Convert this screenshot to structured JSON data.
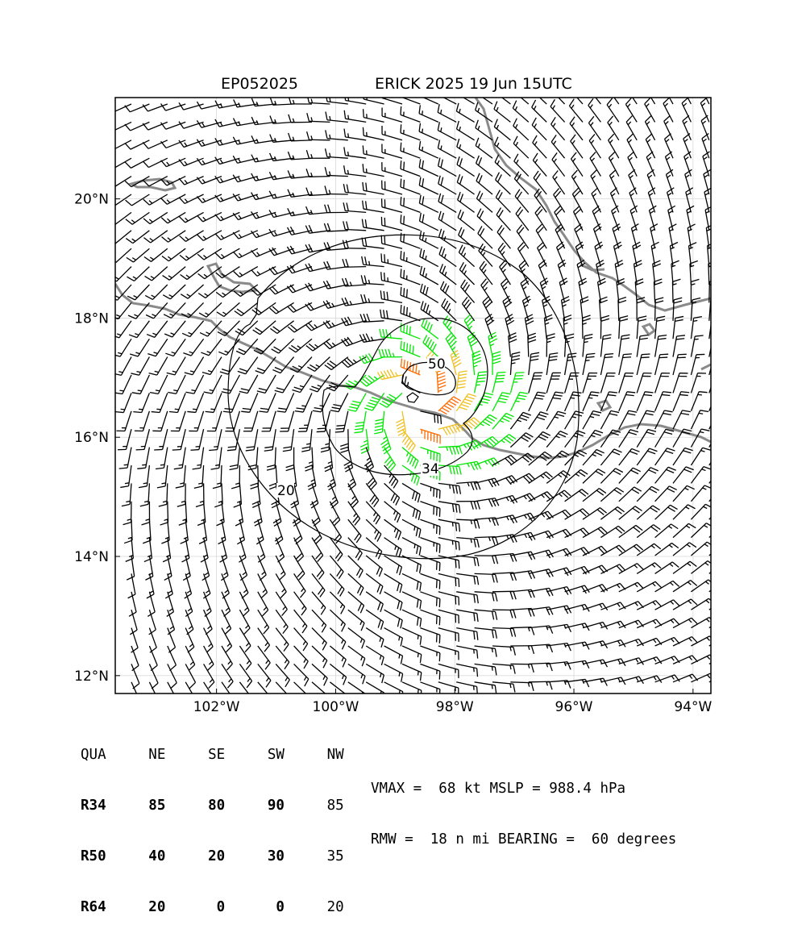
{
  "title": {
    "storm_id": "EP052025",
    "storm_info": "ERICK 2025 19 Jun 15UTC"
  },
  "map": {
    "lon_range": [
      -103.7,
      -93.7
    ],
    "lat_range": [
      11.7,
      21.7
    ],
    "lon_ticks": [
      {
        "value": -102,
        "label": "102°W"
      },
      {
        "value": -100,
        "label": "100°W"
      },
      {
        "value": -98,
        "label": "98°W"
      },
      {
        "value": -96,
        "label": "96°W"
      },
      {
        "value": -94,
        "label": "94°W"
      }
    ],
    "lat_ticks": [
      {
        "value": 12,
        "label": "12°N"
      },
      {
        "value": 14,
        "label": "14°N"
      },
      {
        "value": 16,
        "label": "16°N"
      },
      {
        "value": 18,
        "label": "18°N"
      },
      {
        "value": 20,
        "label": "20°N"
      }
    ],
    "grid": true,
    "storm_center": {
      "lon": -98.6,
      "lat": 16.6
    },
    "contours": [
      {
        "label": "20"
      },
      {
        "label": "34"
      },
      {
        "label": "50"
      }
    ],
    "colors": {
      "barb_weak": "#000000",
      "barb_34kt": "#00e600",
      "barb_50kt": "#f0c020",
      "barb_64kt": "#ff6a00",
      "coastline": "#808080",
      "contour": "#000000"
    }
  },
  "wind_radii": {
    "header": [
      "QUA",
      "NE",
      "SE",
      "SW",
      "NW"
    ],
    "rows": [
      {
        "qua": "R34",
        "ne": "85",
        "se": "80",
        "sw": "90",
        "nw": "85"
      },
      {
        "qua": "R50",
        "ne": "40",
        "se": "20",
        "sw": "30",
        "nw": "35"
      },
      {
        "qua": "R64",
        "ne": "20",
        "se": "0",
        "sw": "0",
        "nw": "20"
      }
    ]
  },
  "summary": {
    "line1": "VMAX =  68 kt MSLP = 988.4 hPa",
    "line2": "RMW =  18 n mi BEARING =  60 degrees"
  }
}
